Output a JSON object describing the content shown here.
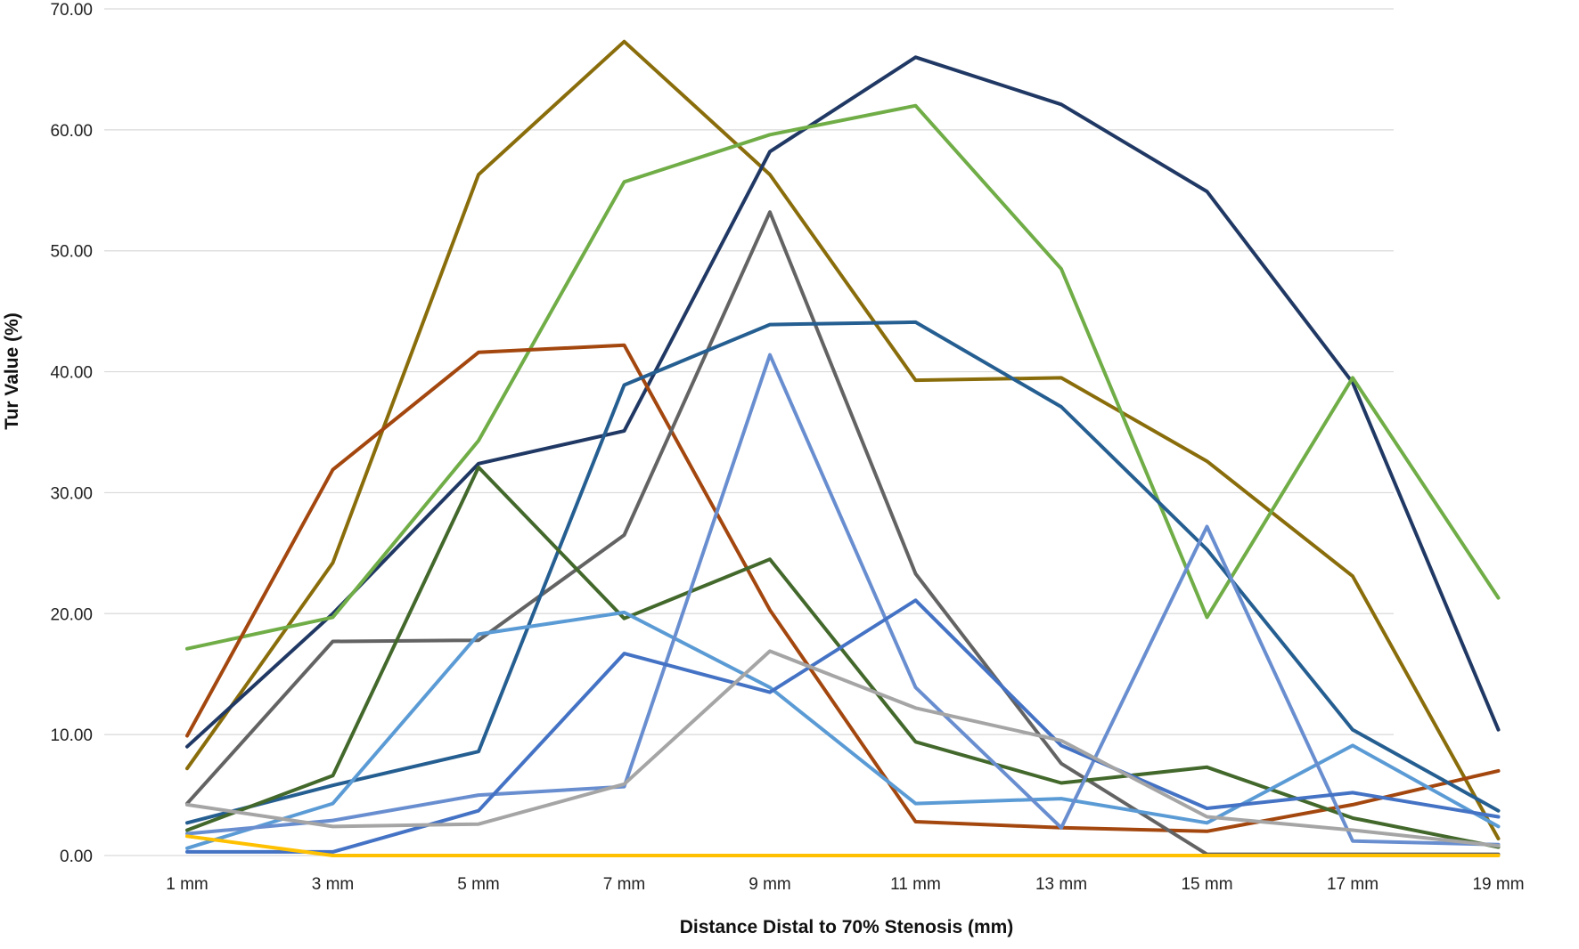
{
  "chart_data": {
    "type": "line",
    "title": "",
    "xlabel": "Distance Distal to 70% Stenosis (mm)",
    "ylabel": "Tur Value (%)",
    "categories": [
      "1 mm",
      "3 mm",
      "5 mm",
      "7 mm",
      "9 mm",
      "11 mm",
      "13 mm",
      "15 mm",
      "17 mm",
      "19 mm"
    ],
    "ylim": [
      0,
      70
    ],
    "yticks": [
      "0.00",
      "10.00",
      "20.00",
      "30.00",
      "40.00",
      "50.00",
      "60.00",
      "70.00"
    ],
    "grid": true,
    "legend": "none",
    "series": [
      {
        "color": "#8a6d0b",
        "values": [
          7.2,
          24.2,
          56.3,
          67.3,
          56.3,
          39.3,
          39.5,
          32.6,
          23.1,
          1.4
        ]
      },
      {
        "color": "#203864",
        "values": [
          9.0,
          20.0,
          32.4,
          35.1,
          58.2,
          66.0,
          62.1,
          54.9,
          39.1,
          10.4
        ]
      },
      {
        "color": "#70ad47",
        "values": [
          17.1,
          19.7,
          34.3,
          55.7,
          59.6,
          62.0,
          48.5,
          19.7,
          39.5,
          21.3
        ]
      },
      {
        "color": "#a3470f",
        "values": [
          9.9,
          31.9,
          41.6,
          42.2,
          20.3,
          2.8,
          2.3,
          2.0,
          4.2,
          7.0
        ]
      },
      {
        "color": "#636363",
        "values": [
          4.3,
          17.7,
          17.8,
          26.5,
          53.2,
          23.3,
          7.6,
          0.1,
          0.1,
          0.1
        ]
      },
      {
        "color": "#255e91",
        "values": [
          2.7,
          5.8,
          8.6,
          38.9,
          43.9,
          44.1,
          37.1,
          25.3,
          10.4,
          3.7
        ]
      },
      {
        "color": "#43682b",
        "values": [
          2.1,
          6.6,
          32.1,
          19.6,
          24.5,
          9.4,
          6.0,
          7.3,
          3.1,
          0.7
        ]
      },
      {
        "color": "#5b9bd5",
        "values": [
          0.6,
          4.3,
          18.3,
          20.1,
          13.9,
          4.3,
          4.7,
          2.7,
          9.1,
          2.4
        ]
      },
      {
        "color": "#698ed0",
        "values": [
          1.8,
          2.9,
          5.0,
          5.7,
          41.4,
          13.9,
          2.3,
          27.2,
          1.2,
          0.9
        ]
      },
      {
        "color": "#4472c4",
        "values": [
          0.3,
          0.3,
          3.7,
          16.7,
          13.5,
          21.1,
          9.1,
          3.9,
          5.2,
          3.2
        ]
      },
      {
        "color": "#a5a5a5",
        "values": [
          4.2,
          2.4,
          2.6,
          5.9,
          16.9,
          12.2,
          9.5,
          3.2,
          2.1,
          0.8
        ]
      },
      {
        "color": "#ffc000",
        "values": [
          1.6,
          0,
          0,
          0,
          0,
          0,
          0,
          0,
          0,
          0
        ]
      }
    ]
  }
}
